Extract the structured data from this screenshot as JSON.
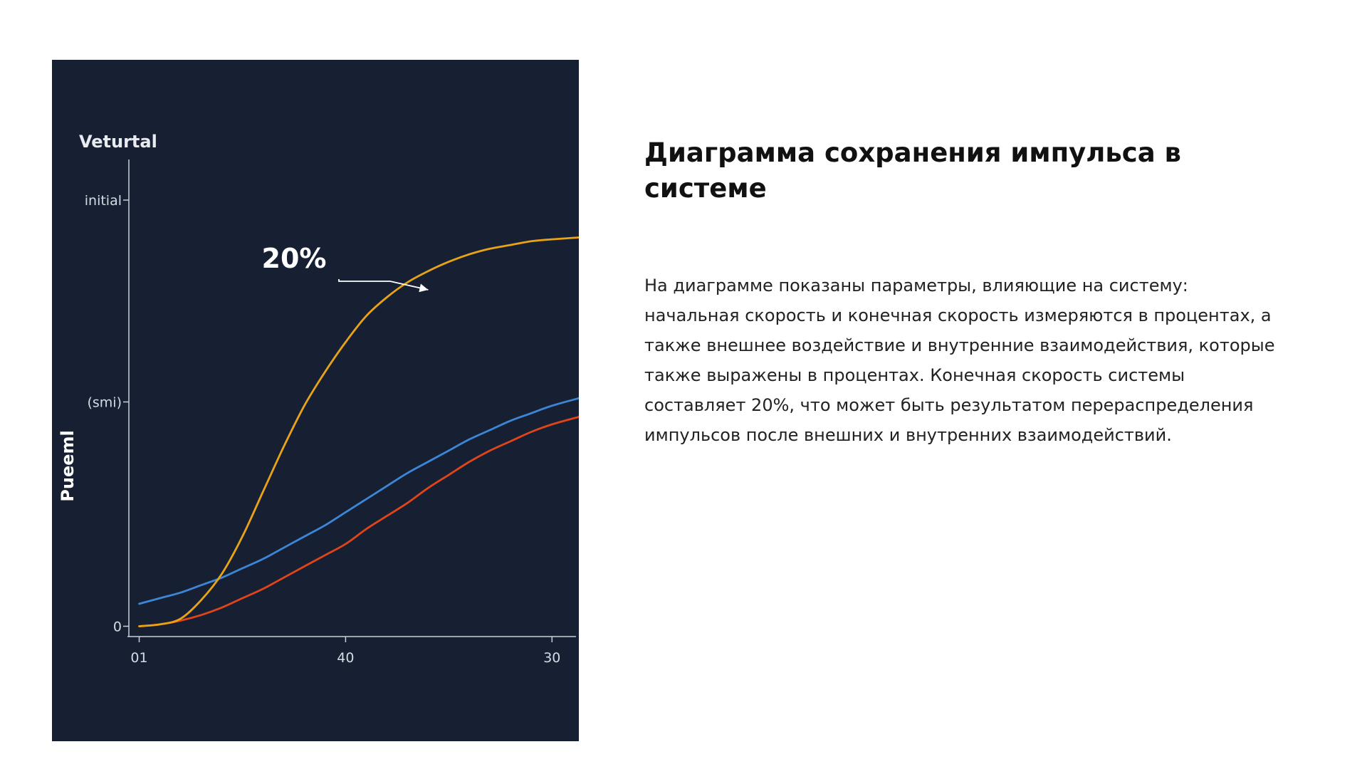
{
  "page": {
    "heading": "Диаграмма сохранения импульса в системе",
    "description": "На диаграмме показаны параметры, влияющие на систему: начальная скорость и конечная скорость измеряются в процентах, а также внешнее воздействие и внутренние взаимодействия, которые также выражены в процентах. Конечная скорость системы составляет 20%, что может быть результатом перераспределения импульсов после внешних и внутренних взаимодействий."
  },
  "colors": {
    "panel_background": "#172033",
    "axis": "#c9cfd8",
    "annotation_arrow": "#ffffff"
  },
  "chart_data": {
    "type": "line",
    "title": "Veturtal",
    "ylabel": "Pueeml",
    "x_tick_labels": [
      "01",
      "40",
      "30"
    ],
    "x_tick_positions": [
      0,
      1,
      2
    ],
    "xlim": [
      -0.05,
      2.13
    ],
    "y_tick_labels": [
      "0",
      "(smi)",
      "initial"
    ],
    "y_tick_positions": [
      0,
      0.6,
      1.14
    ],
    "ylim": [
      -0.02,
      1.22
    ],
    "grid": false,
    "legend": "none",
    "annotation": {
      "text": "20%",
      "points_to": {
        "x": 1.4,
        "y": 0.9
      }
    },
    "series": [
      {
        "color": "#e8a317",
        "x": [
          0,
          0.1,
          0.2,
          0.3,
          0.4,
          0.5,
          0.6,
          0.7,
          0.8,
          0.9,
          1.0,
          1.1,
          1.2,
          1.3,
          1.4,
          1.5,
          1.6,
          1.7,
          1.8,
          1.9,
          2.0,
          2.13
        ],
        "y": [
          0.0,
          0.005,
          0.02,
          0.07,
          0.14,
          0.24,
          0.36,
          0.48,
          0.59,
          0.68,
          0.76,
          0.83,
          0.88,
          0.92,
          0.95,
          0.975,
          0.995,
          1.01,
          1.02,
          1.03,
          1.035,
          1.04
        ]
      },
      {
        "color": "#3d86d6",
        "x": [
          0,
          0.1,
          0.2,
          0.3,
          0.4,
          0.5,
          0.6,
          0.7,
          0.8,
          0.9,
          1.0,
          1.1,
          1.2,
          1.3,
          1.4,
          1.5,
          1.6,
          1.7,
          1.8,
          1.9,
          2.0,
          2.13
        ],
        "y": [
          0.06,
          0.075,
          0.09,
          0.11,
          0.13,
          0.155,
          0.18,
          0.21,
          0.24,
          0.27,
          0.305,
          0.34,
          0.375,
          0.41,
          0.44,
          0.47,
          0.5,
          0.525,
          0.55,
          0.57,
          0.59,
          0.61
        ]
      },
      {
        "color": "#e0441a",
        "x": [
          0,
          0.1,
          0.2,
          0.3,
          0.4,
          0.5,
          0.6,
          0.7,
          0.8,
          0.9,
          1.0,
          1.1,
          1.2,
          1.3,
          1.4,
          1.5,
          1.6,
          1.7,
          1.8,
          1.9,
          2.0,
          2.13
        ],
        "y": [
          0.0,
          0.005,
          0.015,
          0.03,
          0.05,
          0.075,
          0.1,
          0.13,
          0.16,
          0.19,
          0.22,
          0.26,
          0.295,
          0.33,
          0.37,
          0.405,
          0.44,
          0.47,
          0.495,
          0.52,
          0.54,
          0.56
        ]
      }
    ]
  }
}
